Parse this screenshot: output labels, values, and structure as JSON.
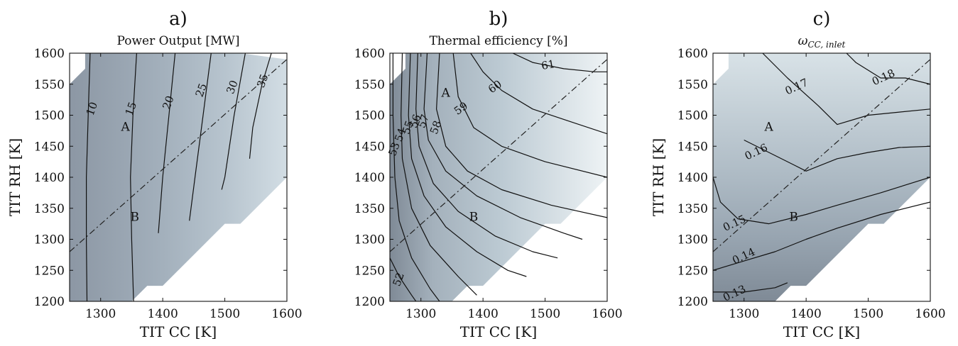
{
  "chart_data": [
    {
      "type": "contour",
      "panel_label": "a)",
      "title": "Power Output [MW]",
      "xlabel": "TIT CC [K]",
      "ylabel": "TIT RH [K]",
      "xlim": [
        1250,
        1600
      ],
      "ylim": [
        1200,
        1600
      ],
      "xticks": [
        1300,
        1400,
        1500,
        1600
      ],
      "yticks": [
        1200,
        1250,
        1300,
        1350,
        1400,
        1450,
        1500,
        1550,
        1600
      ],
      "contour_levels": [
        10,
        15,
        20,
        25,
        30,
        35
      ],
      "contours": [
        {
          "level": 10,
          "label": "10",
          "label_at": [
            1287,
            1510
          ],
          "points": [
            [
              1283,
              1600
            ],
            [
              1280,
              1500
            ],
            [
              1277,
              1400
            ],
            [
              1277,
              1300
            ],
            [
              1278,
              1200
            ]
          ]
        },
        {
          "level": 15,
          "label": "15",
          "label_at": [
            1350,
            1510
          ],
          "points": [
            [
              1358,
              1600
            ],
            [
              1352,
              1500
            ],
            [
              1348,
              1400
            ],
            [
              1350,
              1300
            ],
            [
              1353,
              1200
            ]
          ]
        },
        {
          "level": 20,
          "label": "20",
          "label_at": [
            1410,
            1520
          ],
          "points": [
            [
              1420,
              1600
            ],
            [
              1410,
              1500
            ],
            [
              1400,
              1400
            ],
            [
              1393,
              1310
            ]
          ]
        },
        {
          "level": 25,
          "label": "25",
          "label_at": [
            1463,
            1540
          ],
          "points": [
            [
              1478,
              1600
            ],
            [
              1465,
              1500
            ],
            [
              1452,
              1400
            ],
            [
              1443,
              1330
            ]
          ]
        },
        {
          "level": 30,
          "label": "30",
          "label_at": [
            1513,
            1545
          ],
          "points": [
            [
              1533,
              1600
            ],
            [
              1515,
              1500
            ],
            [
              1500,
              1400
            ],
            [
              1495,
              1380
            ]
          ]
        },
        {
          "level": 35,
          "label": "35",
          "label_at": [
            1562,
            1555
          ],
          "points": [
            [
              1575,
              1600
            ],
            [
              1560,
              1550
            ],
            [
              1545,
              1480
            ],
            [
              1540,
              1430
            ]
          ]
        }
      ],
      "boundary_line": [
        [
          1250,
          1280
        ],
        [
          1600,
          1590
        ]
      ],
      "regions": [
        {
          "label": "A",
          "at": [
            1340,
            1480
          ]
        },
        {
          "label": "B",
          "at": [
            1355,
            1335
          ]
        }
      ],
      "shading": [
        [
          1250,
          "#8c97a4"
        ],
        [
          1400,
          "#a3b0bc"
        ],
        [
          1500,
          "#b7c4ce"
        ],
        [
          1600,
          "#d2dde4"
        ]
      ],
      "domain": [
        [
          1275,
          1600
        ],
        [
          1525,
          1600
        ],
        [
          1600,
          1590
        ],
        [
          1600,
          1400
        ],
        [
          1550,
          1350
        ],
        [
          1525,
          1325
        ],
        [
          1500,
          1325
        ],
        [
          1400,
          1225
        ],
        [
          1375,
          1225
        ],
        [
          1350,
          1200
        ],
        [
          1250,
          1200
        ],
        [
          1250,
          1550
        ],
        [
          1275,
          1575
        ]
      ]
    },
    {
      "type": "contour",
      "panel_label": "b)",
      "title": "Thermal efficiency [%]",
      "xlabel": "TIT CC [K]",
      "ylabel": "",
      "xlim": [
        1250,
        1600
      ],
      "ylim": [
        1200,
        1600
      ],
      "xticks": [
        1300,
        1400,
        1500,
        1600
      ],
      "yticks": [
        1200,
        1250,
        1300,
        1350,
        1400,
        1450,
        1500,
        1550,
        1600
      ],
      "contour_levels": [
        52,
        53,
        54,
        55,
        56,
        57,
        58,
        59,
        60,
        61
      ],
      "contours": [
        {
          "level": 52,
          "label": "52",
          "label_at": [
            1265,
            1235
          ],
          "points": [
            [
              1250,
              1270
            ],
            [
              1265,
              1240
            ],
            [
              1285,
              1210
            ],
            [
              1292,
              1200
            ]
          ]
        },
        {
          "level": 53,
          "label": "53",
          "label_at": [
            1258,
            1445
          ],
          "points": [
            [
              1255,
              1600
            ],
            [
              1255,
              1500
            ],
            [
              1258,
              1400
            ],
            [
              1265,
              1330
            ],
            [
              1285,
              1270
            ],
            [
              1315,
              1220
            ],
            [
              1330,
              1200
            ]
          ]
        },
        {
          "level": 54,
          "label": "54",
          "label_at": [
            1268,
            1468
          ],
          "points": [
            [
              1270,
              1600
            ],
            [
              1268,
              1500
            ],
            [
              1270,
              1430
            ],
            [
              1285,
              1350
            ],
            [
              1315,
              1290
            ],
            [
              1360,
              1240
            ],
            [
              1390,
              1210
            ]
          ]
        },
        {
          "level": 55,
          "label": "55",
          "label_at": [
            1280,
            1480
          ],
          "points": [
            [
              1283,
              1600
            ],
            [
              1280,
              1500
            ],
            [
              1285,
              1430
            ],
            [
              1305,
              1370
            ],
            [
              1340,
              1320
            ],
            [
              1390,
              1280
            ],
            [
              1440,
              1250
            ],
            [
              1470,
              1240
            ]
          ]
        },
        {
          "level": 56,
          "label": "56",
          "label_at": [
            1292,
            1490
          ],
          "points": [
            [
              1295,
              1600
            ],
            [
              1292,
              1510
            ],
            [
              1297,
              1450
            ],
            [
              1320,
              1390
            ],
            [
              1360,
              1345
            ],
            [
              1420,
              1305
            ],
            [
              1480,
              1280
            ],
            [
              1520,
              1270
            ]
          ]
        },
        {
          "level": 57,
          "label": "57",
          "label_at": [
            1305,
            1490
          ],
          "points": [
            [
              1310,
              1600
            ],
            [
              1305,
              1510
            ],
            [
              1312,
              1460
            ],
            [
              1340,
              1410
            ],
            [
              1390,
              1370
            ],
            [
              1460,
              1335
            ],
            [
              1530,
              1310
            ],
            [
              1560,
              1300
            ]
          ]
        },
        {
          "level": 58,
          "label": "58",
          "label_at": [
            1325,
            1480
          ],
          "points": [
            [
              1330,
              1600
            ],
            [
              1325,
              1510
            ],
            [
              1340,
              1450
            ],
            [
              1375,
              1410
            ],
            [
              1430,
              1380
            ],
            [
              1510,
              1355
            ],
            [
              1600,
              1335
            ]
          ]
        },
        {
          "level": 59,
          "label": "59",
          "label_at": [
            1365,
            1510
          ],
          "points": [
            [
              1352,
              1600
            ],
            [
              1360,
              1530
            ],
            [
              1385,
              1480
            ],
            [
              1430,
              1450
            ],
            [
              1500,
              1425
            ],
            [
              1600,
              1400
            ]
          ]
        },
        {
          "level": 60,
          "label": "60",
          "label_at": [
            1420,
            1545
          ],
          "points": [
            [
              1380,
              1600
            ],
            [
              1400,
              1570
            ],
            [
              1430,
              1540
            ],
            [
              1480,
              1510
            ],
            [
              1540,
              1490
            ],
            [
              1600,
              1470
            ]
          ]
        },
        {
          "level": 61,
          "label": "61",
          "label_at": [
            1505,
            1580
          ],
          "points": [
            [
              1448,
              1600
            ],
            [
              1480,
              1585
            ],
            [
              1530,
              1575
            ],
            [
              1580,
              1570
            ],
            [
              1600,
              1570
            ]
          ]
        }
      ],
      "boundary_line": [
        [
          1250,
          1280
        ],
        [
          1600,
          1590
        ]
      ],
      "regions": [
        {
          "label": "A",
          "at": [
            1340,
            1535
          ]
        },
        {
          "label": "B",
          "at": [
            1385,
            1335
          ]
        }
      ],
      "shading": [
        [
          1250,
          "#7f8a96"
        ],
        [
          1320,
          "#a4b1bc"
        ],
        [
          1430,
          "#bccad3"
        ],
        [
          1600,
          "#eef3f5"
        ]
      ],
      "domain": [
        [
          1275,
          1600
        ],
        [
          1600,
          1600
        ],
        [
          1600,
          1400
        ],
        [
          1525,
          1325
        ],
        [
          1500,
          1325
        ],
        [
          1400,
          1225
        ],
        [
          1375,
          1225
        ],
        [
          1350,
          1200
        ],
        [
          1250,
          1200
        ],
        [
          1250,
          1550
        ],
        [
          1275,
          1575
        ]
      ]
    },
    {
      "type": "contour",
      "panel_label": "c)",
      "title": "ω",
      "title_subscript": "CC, inlet",
      "xlabel": "TIT CC [K]",
      "ylabel": "TIT RH [K]",
      "xlim": [
        1250,
        1600
      ],
      "ylim": [
        1200,
        1600
      ],
      "xticks": [
        1300,
        1400,
        1500,
        1600
      ],
      "yticks": [
        1200,
        1250,
        1300,
        1350,
        1400,
        1450,
        1500,
        1550,
        1600
      ],
      "contour_levels": [
        0.13,
        0.14,
        0.15,
        0.16,
        0.17,
        0.18
      ],
      "contours": [
        {
          "level": 0.13,
          "label": "0.13",
          "label_at": [
            1285,
            1212
          ],
          "points": [
            [
              1250,
              1215
            ],
            [
              1300,
              1215
            ],
            [
              1350,
              1222
            ],
            [
              1370,
              1230
            ]
          ]
        },
        {
          "level": 0.14,
          "label": "0.14",
          "label_at": [
            1300,
            1272
          ],
          "points": [
            [
              1250,
              1250
            ],
            [
              1300,
              1265
            ],
            [
              1350,
              1280
            ],
            [
              1400,
              1300
            ],
            [
              1450,
              1318
            ],
            [
              1520,
              1340
            ],
            [
              1600,
              1360
            ]
          ]
        },
        {
          "level": 0.15,
          "label": "0.15",
          "label_at": [
            1285,
            1325
          ],
          "points": [
            [
              1250,
              1400
            ],
            [
              1262,
              1360
            ],
            [
              1290,
              1333
            ],
            [
              1340,
              1325
            ],
            [
              1400,
              1340
            ],
            [
              1450,
              1355
            ],
            [
              1520,
              1375
            ],
            [
              1600,
              1400
            ]
          ]
        },
        {
          "level": 0.16,
          "label": "0.16",
          "label_at": [
            1320,
            1440
          ],
          "points": [
            [
              1300,
              1460
            ],
            [
              1340,
              1440
            ],
            [
              1380,
              1420
            ],
            [
              1400,
              1410
            ],
            [
              1450,
              1430
            ],
            [
              1500,
              1440
            ],
            [
              1550,
              1448
            ],
            [
              1600,
              1450
            ]
          ]
        },
        {
          "level": 0.17,
          "label": "0.17",
          "label_at": [
            1385,
            1545
          ],
          "points": [
            [
              1330,
              1600
            ],
            [
              1370,
              1560
            ],
            [
              1420,
              1515
            ],
            [
              1450,
              1485
            ],
            [
              1500,
              1500
            ],
            [
              1550,
              1505
            ],
            [
              1600,
              1510
            ]
          ]
        },
        {
          "level": 0.18,
          "label": "0.18",
          "label_at": [
            1525,
            1560
          ],
          "points": [
            [
              1465,
              1600
            ],
            [
              1480,
              1585
            ],
            [
              1520,
              1560
            ],
            [
              1560,
              1560
            ],
            [
              1600,
              1550
            ]
          ]
        }
      ],
      "boundary_line": [
        [
          1250,
          1280
        ],
        [
          1600,
          1590
        ]
      ],
      "regions": [
        {
          "label": "A",
          "at": [
            1340,
            1480
          ]
        },
        {
          "label": "B",
          "at": [
            1380,
            1335
          ]
        }
      ],
      "shading": [
        [
          1200,
          "#7f8a96"
        ],
        [
          1300,
          "#97a4b0"
        ],
        [
          1400,
          "#adbac4"
        ],
        [
          1600,
          "#d8e2e7"
        ]
      ],
      "domain": [
        [
          1275,
          1600
        ],
        [
          1600,
          1600
        ],
        [
          1600,
          1400
        ],
        [
          1525,
          1325
        ],
        [
          1500,
          1325
        ],
        [
          1400,
          1225
        ],
        [
          1375,
          1225
        ],
        [
          1350,
          1200
        ],
        [
          1250,
          1200
        ],
        [
          1250,
          1550
        ],
        [
          1275,
          1575
        ]
      ]
    }
  ]
}
